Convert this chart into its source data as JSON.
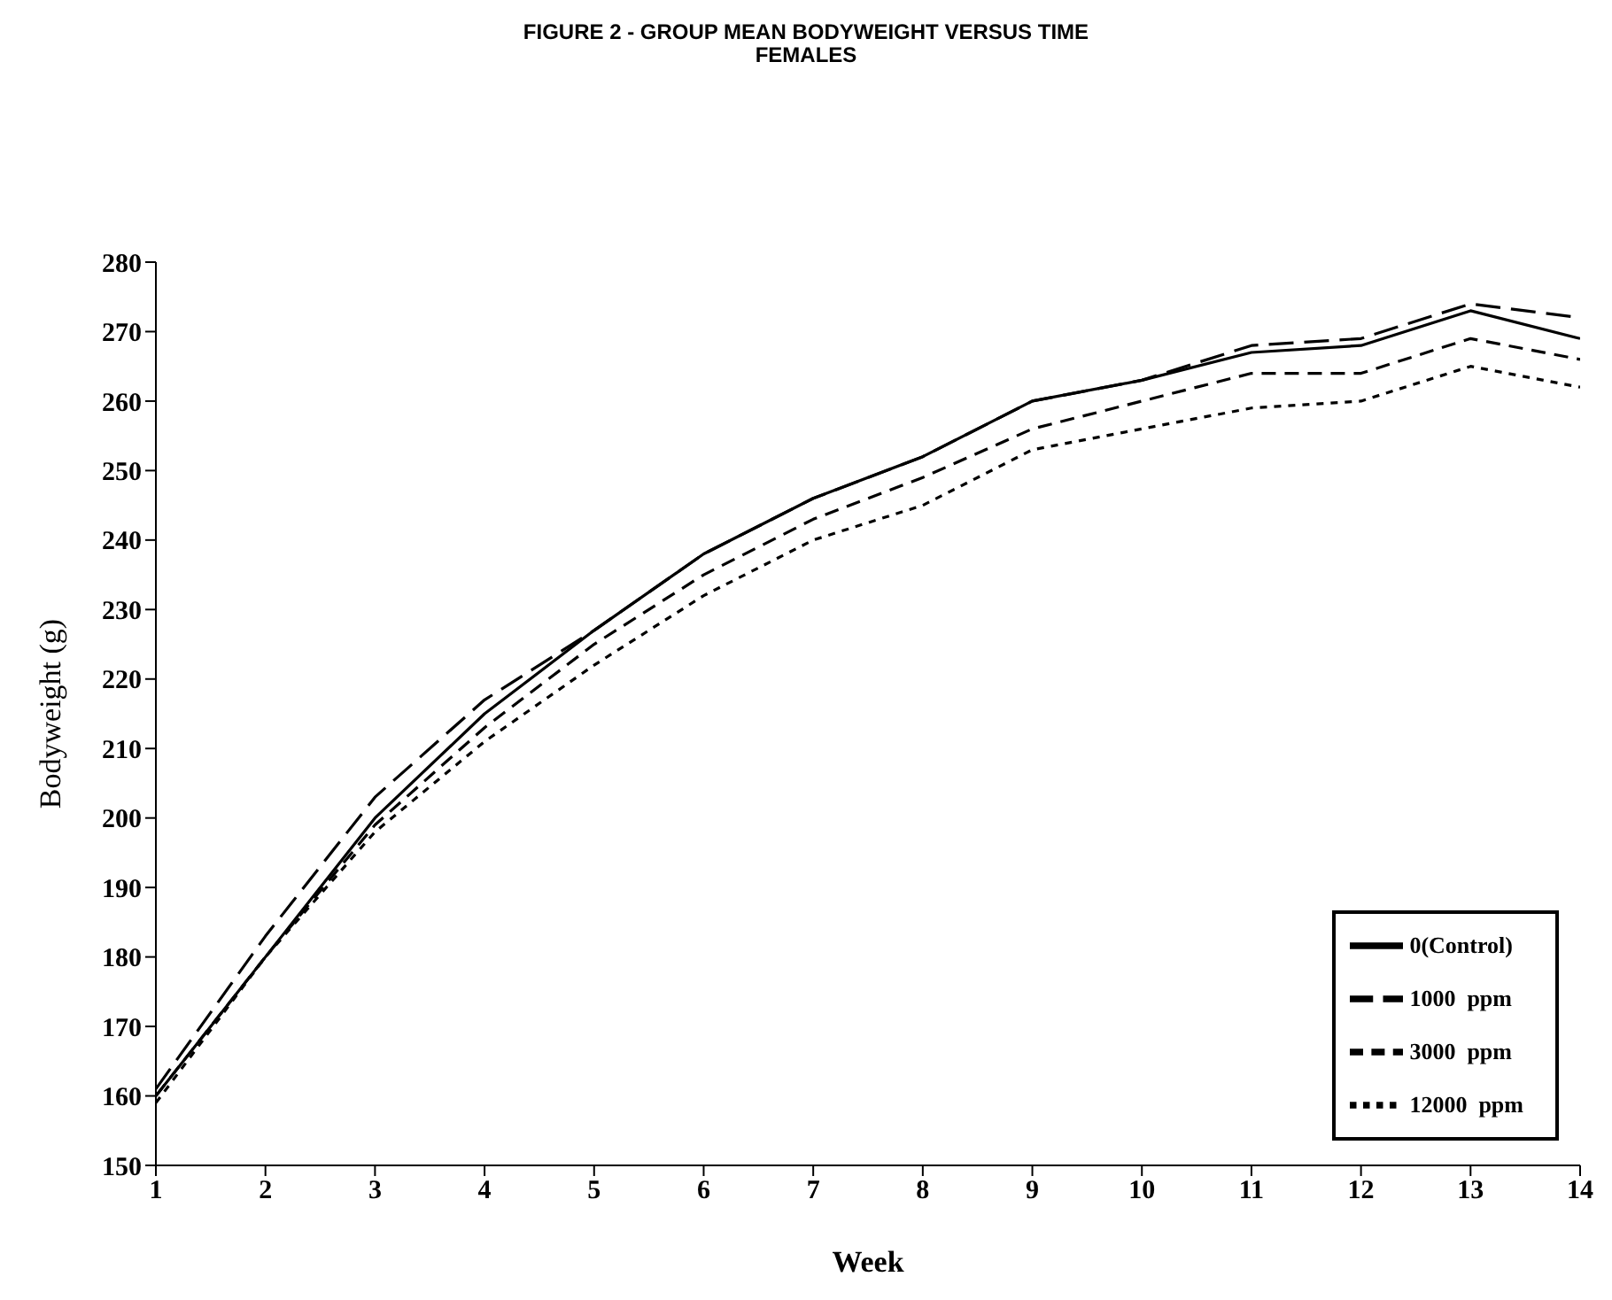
{
  "chart_data": {
    "type": "line",
    "title": "FIGURE 2  - GROUP MEAN BODYWEIGHT VERSUS TIME",
    "subtitle": "FEMALES",
    "xlabel": "Week",
    "ylabel": "Bodyweight (g)",
    "x": [
      1,
      2,
      3,
      4,
      5,
      6,
      7,
      8,
      9,
      10,
      11,
      12,
      13,
      14
    ],
    "xlim": [
      1,
      14
    ],
    "xticks": [
      1,
      2,
      3,
      4,
      5,
      6,
      7,
      8,
      9,
      10,
      11,
      12,
      13,
      14
    ],
    "ylim": [
      150,
      280
    ],
    "yticks": [
      150,
      160,
      170,
      180,
      190,
      200,
      210,
      220,
      230,
      240,
      250,
      260,
      270,
      280
    ],
    "legend": "bottom right",
    "marker": "none",
    "series": [
      {
        "name": "0(Control)",
        "color": "#000000",
        "line_style": "solid",
        "values": [
          160,
          180,
          200,
          215,
          227,
          238,
          246,
          252,
          260,
          263,
          267,
          268,
          273,
          269
        ]
      },
      {
        "name": "1000  ppm",
        "color": "#000000",
        "line_style": "longdash",
        "values": [
          161,
          183,
          203,
          217,
          227,
          238,
          246,
          252,
          260,
          263,
          268,
          269,
          274,
          272
        ]
      },
      {
        "name": "3000  ppm",
        "color": "#000000",
        "line_style": "dashed",
        "values": [
          160,
          180,
          199,
          213,
          225,
          235,
          243,
          249,
          256,
          260,
          264,
          264,
          269,
          266
        ]
      },
      {
        "name": "12000  ppm",
        "color": "#000000",
        "line_style": "dotted",
        "values": [
          159,
          180,
          198,
          211,
          222,
          232,
          240,
          245,
          253,
          256,
          259,
          260,
          265,
          262
        ]
      }
    ]
  }
}
